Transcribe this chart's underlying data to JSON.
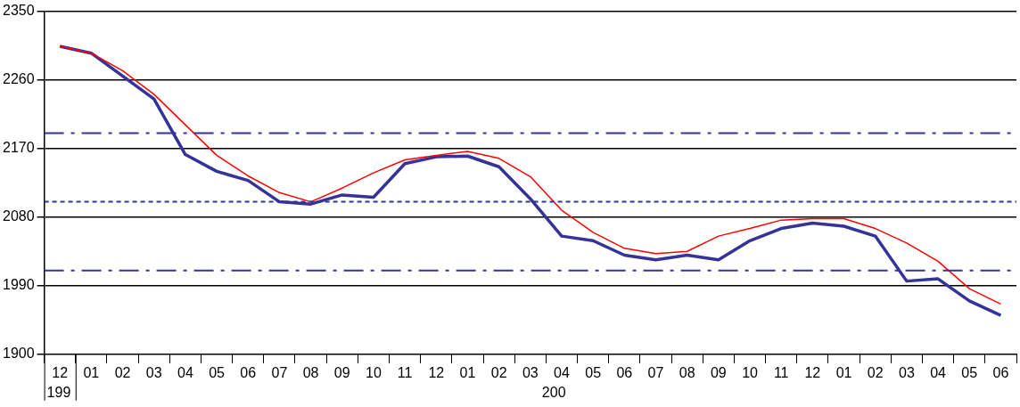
{
  "chart_data": {
    "type": "line",
    "categories": [
      "12",
      "01",
      "02",
      "03",
      "04",
      "05",
      "06",
      "07",
      "08",
      "09",
      "10",
      "11",
      "12",
      "01",
      "02",
      "03",
      "04",
      "05",
      "06",
      "07",
      "08",
      "09",
      "10",
      "11",
      "12",
      "01",
      "02",
      "03",
      "04",
      "05",
      "06"
    ],
    "series": [
      {
        "color": "#ff0000",
        "values": [
          2304,
          2295,
          2272,
          2241,
          2201,
          2161,
          2134,
          2112,
          2100,
          2118,
          2138,
          2155,
          2161,
          2166,
          2157,
          2133,
          2089,
          2060,
          2039,
          2032,
          2035,
          2055,
          2065,
          2076,
          2078,
          2078,
          2065,
          2046,
          2022,
          1986,
          1966
        ]
      },
      {
        "color": "#333399",
        "values": [
          2304,
          2295,
          2265,
          2235,
          2162,
          2140,
          2128,
          2100,
          2097,
          2109,
          2106,
          2150,
          2159,
          2160,
          2146,
          2104,
          2055,
          2049,
          2030,
          2024,
          2030,
          2024,
          2049,
          2065,
          2072,
          2068,
          2055,
          1996,
          1999,
          1970,
          1951
        ]
      }
    ],
    "ylim": [
      1900,
      2350
    ],
    "yticks": [
      1900,
      1990,
      2080,
      2170,
      2260,
      2350
    ],
    "grid": "y",
    "legend": false,
    "marker": "none",
    "line_style": "solid",
    "ref_lines": [
      {
        "axis": "y",
        "value": 2190,
        "color": "#333399",
        "line_style": "dashed"
      },
      {
        "axis": "y",
        "value": 2100,
        "color": "#333399",
        "line_style": "dotted"
      },
      {
        "axis": "y",
        "value": 2010,
        "color": "#333399",
        "line_style": "dashed"
      }
    ],
    "annotations": [
      "199",
      "200"
    ]
  }
}
